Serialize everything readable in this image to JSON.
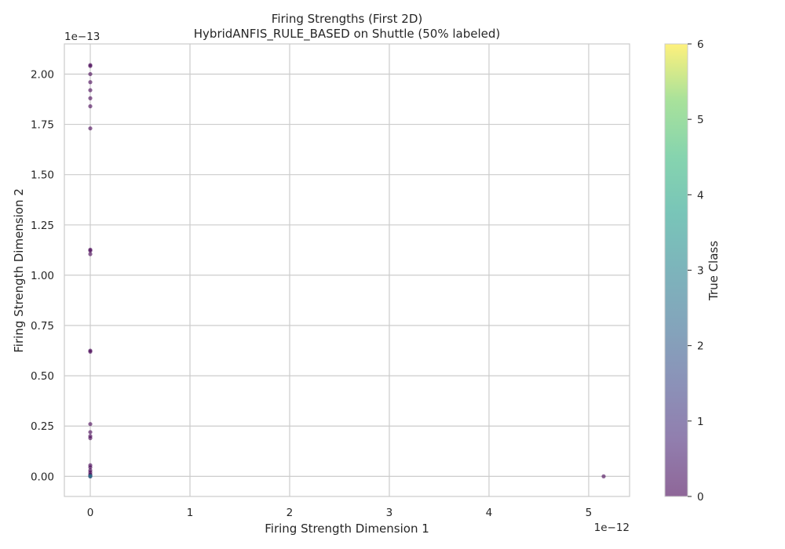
{
  "chart_data": {
    "type": "scatter",
    "title": "Firing Strengths (First 2D)",
    "subtitle": "HybridANFIS_RULE_BASED on Shuttle (50% labeled)",
    "xlabel": "Firing Strength Dimension 1",
    "ylabel": "Firing Strength Dimension 2",
    "x_offset_label": "1e−12",
    "y_offset_label": "1e−13",
    "xlim": [
      -0.26,
      5.41
    ],
    "ylim": [
      -0.1,
      2.15
    ],
    "x_ticks": [
      0,
      1,
      2,
      3,
      4,
      5
    ],
    "x_tick_labels": [
      "0",
      "1",
      "2",
      "3",
      "4",
      "5"
    ],
    "y_ticks": [
      0.0,
      0.25,
      0.5,
      0.75,
      1.0,
      1.25,
      1.5,
      1.75,
      2.0
    ],
    "y_tick_labels": [
      "0.00",
      "0.25",
      "0.50",
      "0.75",
      "1.00",
      "1.25",
      "1.50",
      "1.75",
      "2.00"
    ],
    "grid": true,
    "colormap": "viridis",
    "point_alpha": 0.6,
    "colorbar": {
      "label": "True Class",
      "range": [
        0,
        6
      ],
      "ticks": [
        0,
        1,
        2,
        3,
        4,
        5,
        6
      ],
      "tick_labels": [
        "0",
        "1",
        "2",
        "3",
        "4",
        "5",
        "6"
      ]
    },
    "points": [
      {
        "x": 0,
        "y": 2.045,
        "class": 0
      },
      {
        "x": 0,
        "y": 2.04,
        "class": 0
      },
      {
        "x": 0,
        "y": 2.0,
        "class": 0
      },
      {
        "x": 0,
        "y": 1.96,
        "class": 0
      },
      {
        "x": 0,
        "y": 1.92,
        "class": 0
      },
      {
        "x": 0,
        "y": 1.88,
        "class": 0
      },
      {
        "x": 0,
        "y": 1.84,
        "class": 0
      },
      {
        "x": 0,
        "y": 1.73,
        "class": 0
      },
      {
        "x": 0,
        "y": 1.127,
        "class": 0
      },
      {
        "x": 0,
        "y": 1.122,
        "class": 0
      },
      {
        "x": 0,
        "y": 1.105,
        "class": 0
      },
      {
        "x": 0,
        "y": 0.625,
        "class": 0
      },
      {
        "x": 0,
        "y": 0.62,
        "class": 0
      },
      {
        "x": 0,
        "y": 0.26,
        "class": 0
      },
      {
        "x": 0,
        "y": 0.22,
        "class": 0
      },
      {
        "x": 0,
        "y": 0.2,
        "class": 0
      },
      {
        "x": 0,
        "y": 0.19,
        "class": 0
      },
      {
        "x": 0,
        "y": 0.055,
        "class": 0
      },
      {
        "x": 0,
        "y": 0.045,
        "class": 0
      },
      {
        "x": 0,
        "y": 0.03,
        "class": 0
      },
      {
        "x": 0,
        "y": 0.02,
        "class": 0
      },
      {
        "x": 0,
        "y": 0.01,
        "class": 0
      },
      {
        "x": 0,
        "y": 0.005,
        "class": 0
      },
      {
        "x": 0,
        "y": 0.0,
        "class": 0
      },
      {
        "x": 0,
        "y": 0.0,
        "class": 2
      },
      {
        "x": 0,
        "y": 0.002,
        "class": 3
      },
      {
        "x": 5.15,
        "y": 0.0,
        "class": 0
      }
    ]
  }
}
